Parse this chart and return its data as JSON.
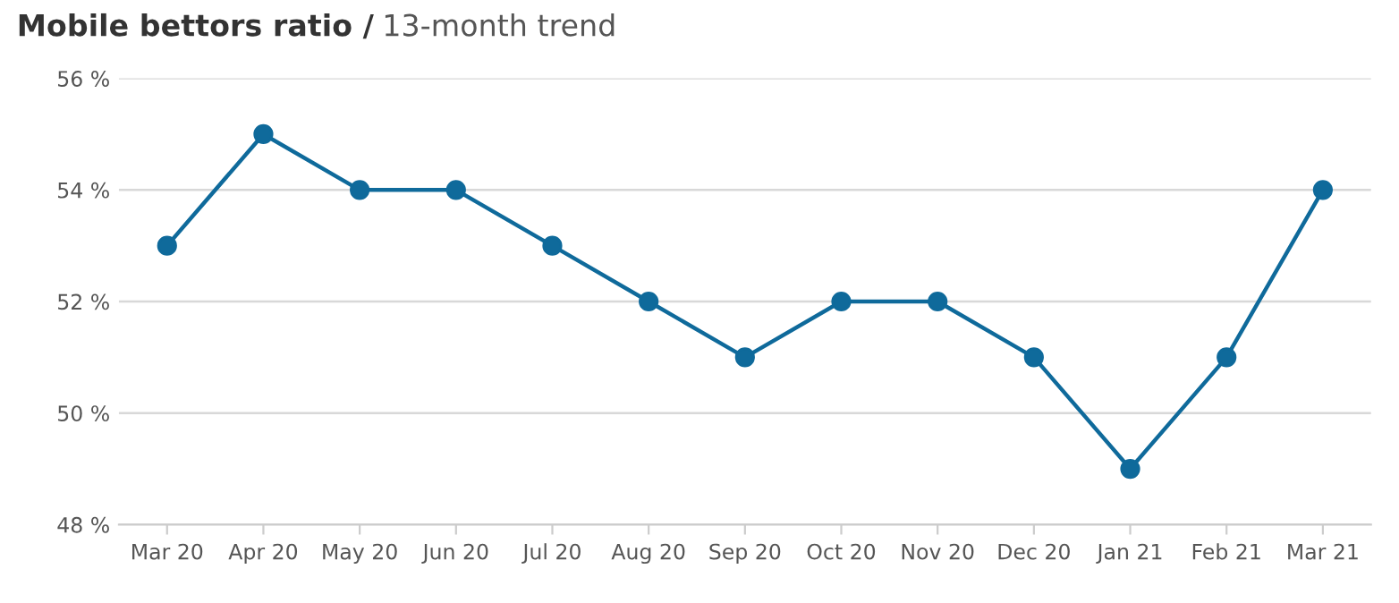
{
  "chart_data": {
    "type": "line",
    "title": "Mobile bettors ratio /",
    "subtitle": "13-month trend",
    "categories": [
      "Mar 20",
      "Apr 20",
      "May 20",
      "Jun 20",
      "Jul 20",
      "Aug 20",
      "Sep 20",
      "Oct 20",
      "Nov 20",
      "Dec 20",
      "Jan 21",
      "Feb 21",
      "Mar 21"
    ],
    "series": [
      {
        "color": "#0f6a9b",
        "values": [
          53,
          55,
          54,
          54,
          53,
          52,
          51,
          52,
          52,
          51,
          49,
          51,
          54
        ]
      }
    ],
    "ylim": [
      48,
      56
    ],
    "yticks": [
      {
        "value": 48,
        "label": "48 %"
      },
      {
        "value": 50,
        "label": "50 %"
      },
      {
        "value": 52,
        "label": "52 %"
      },
      {
        "value": 54,
        "label": "54 %"
      },
      {
        "value": 56,
        "label": "56 %"
      }
    ],
    "grid": "y",
    "marker": "circle",
    "line_style": "solid"
  }
}
